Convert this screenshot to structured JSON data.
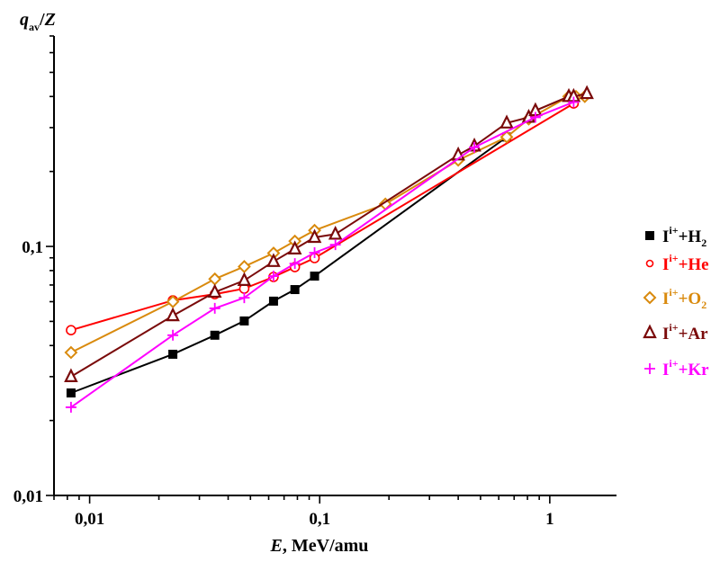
{
  "chart_data": {
    "type": "line",
    "title": "",
    "xlabel": {
      "italic": "E",
      "rest": ", MeV/amu"
    },
    "ylabel": {
      "italic": "q",
      "sub": "av",
      "rest": "/",
      "italic2": "Z"
    },
    "xscale": "log",
    "yscale": "log",
    "xlim": [
      0.007,
      1.95
    ],
    "ylim": [
      0.01,
      0.7
    ],
    "grid": false,
    "legend_position": "right",
    "x_ticks": [
      {
        "value": 0.01,
        "label": "0,01"
      },
      {
        "value": 0.1,
        "label": "0,1"
      },
      {
        "value": 1,
        "label": "1"
      }
    ],
    "y_ticks": [
      {
        "value": 0.01,
        "label": "0,01"
      },
      {
        "value": 0.1,
        "label": "0,1"
      }
    ],
    "series": [
      {
        "name": "H2",
        "legend": {
          "base": "I",
          "sup": "i+",
          "rest": "+H",
          "sub": "2"
        },
        "color": "#000000",
        "marker": "square",
        "points": [
          [
            0.0083,
            0.0258
          ],
          [
            0.023,
            0.0369
          ],
          [
            0.035,
            0.044
          ],
          [
            0.047,
            0.0502
          ],
          [
            0.063,
            0.0603
          ],
          [
            0.078,
            0.0671
          ],
          [
            0.095,
            0.076
          ],
          [
            0.65,
            0.275
          ]
        ]
      },
      {
        "name": "He",
        "legend": {
          "base": "I",
          "sup": "i+",
          "rest": "+He",
          "sub": ""
        },
        "color": "#ff0000",
        "marker": "circle",
        "points": [
          [
            0.0083,
            0.0461
          ],
          [
            0.023,
            0.0607
          ],
          [
            0.035,
            0.0643
          ],
          [
            0.047,
            0.0677
          ],
          [
            0.063,
            0.0754
          ],
          [
            0.078,
            0.0826
          ],
          [
            0.095,
            0.0898
          ],
          [
            1.27,
            0.375
          ]
        ]
      },
      {
        "name": "O2",
        "legend": {
          "base": "I",
          "sup": "i+",
          "rest": "+O",
          "sub": "2"
        },
        "color": "#d98a0d",
        "marker": "diamond",
        "points": [
          [
            0.0083,
            0.0375
          ],
          [
            0.023,
            0.06
          ],
          [
            0.035,
            0.074
          ],
          [
            0.047,
            0.083
          ],
          [
            0.063,
            0.094
          ],
          [
            0.078,
            0.105
          ],
          [
            0.095,
            0.116
          ],
          [
            0.193,
            0.148
          ],
          [
            0.4,
            0.222
          ],
          [
            0.65,
            0.275
          ],
          [
            0.81,
            0.325
          ],
          [
            1.21,
            0.4
          ],
          [
            1.3,
            0.4
          ],
          [
            1.42,
            0.4
          ]
        ]
      },
      {
        "name": "Ar",
        "legend": {
          "base": "I",
          "sup": "i+",
          "rest": "+Ar",
          "sub": ""
        },
        "color": "#7a0a0a",
        "marker": "triangle",
        "points": [
          [
            0.0083,
            0.03
          ],
          [
            0.023,
            0.0527
          ],
          [
            0.035,
            0.0655
          ],
          [
            0.047,
            0.073
          ],
          [
            0.063,
            0.087
          ],
          [
            0.078,
            0.0977
          ],
          [
            0.095,
            0.1087
          ],
          [
            0.117,
            0.112
          ],
          [
            0.4,
            0.233
          ],
          [
            0.47,
            0.253
          ],
          [
            0.65,
            0.313
          ],
          [
            0.81,
            0.33
          ],
          [
            0.866,
            0.351
          ],
          [
            1.21,
            0.4
          ],
          [
            1.27,
            0.4
          ],
          [
            1.45,
            0.411
          ]
        ]
      },
      {
        "name": "Kr",
        "legend": {
          "base": "I",
          "sup": "i+",
          "rest": "+Kr",
          "sub": ""
        },
        "color": "#ff00ff",
        "marker": "plus",
        "points": [
          [
            0.0083,
            0.0226
          ],
          [
            0.023,
            0.044
          ],
          [
            0.035,
            0.0564
          ],
          [
            0.047,
            0.0622
          ],
          [
            0.063,
            0.076
          ],
          [
            0.078,
            0.0853
          ],
          [
            0.095,
            0.0944
          ],
          [
            0.117,
            0.1016
          ],
          [
            0.47,
            0.25
          ],
          [
            0.866,
            0.33
          ],
          [
            1.27,
            0.38
          ]
        ]
      }
    ]
  }
}
